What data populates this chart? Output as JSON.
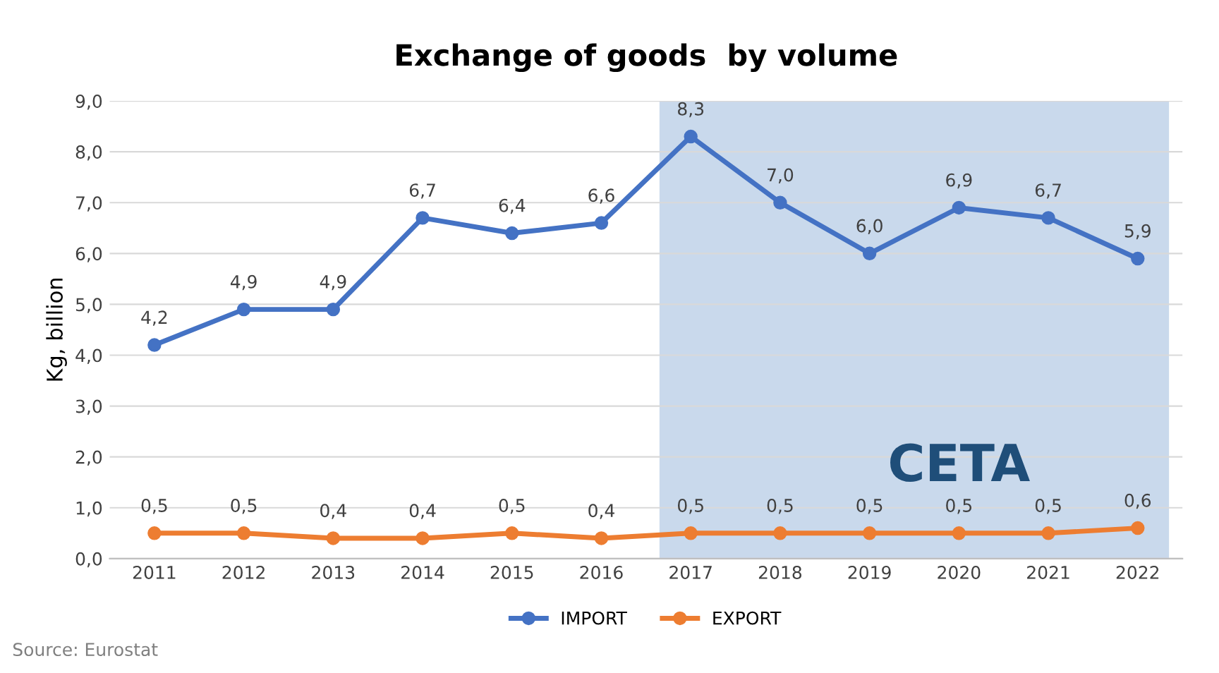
{
  "chart_data": {
    "type": "line",
    "title": "Exchange of goods  by volume",
    "ylabel": "Kg, billion",
    "categories": [
      "2011",
      "2012",
      "2013",
      "2014",
      "2015",
      "2016",
      "2017",
      "2018",
      "2019",
      "2020",
      "2021",
      "2022"
    ],
    "series": [
      {
        "name": "IMPORT",
        "color": "#4472c4",
        "values": [
          4.2,
          4.9,
          4.9,
          6.7,
          6.4,
          6.6,
          8.3,
          7.0,
          6.0,
          6.9,
          6.7,
          5.9
        ],
        "value_labels": [
          "4,2",
          "4,9",
          "4,9",
          "6,7",
          "6,4",
          "6,6",
          "8,3",
          "7,0",
          "6,0",
          "6,9",
          "6,7",
          "5,9"
        ]
      },
      {
        "name": "EXPORT",
        "color": "#ed7d31",
        "values": [
          0.5,
          0.5,
          0.4,
          0.4,
          0.5,
          0.4,
          0.5,
          0.5,
          0.5,
          0.5,
          0.5,
          0.6
        ],
        "value_labels": [
          "0,5",
          "0,5",
          "0,4",
          "0,4",
          "0,5",
          "0,4",
          "0,5",
          "0,5",
          "0,5",
          "0,5",
          "0,5",
          "0,6"
        ]
      }
    ],
    "ylim": [
      0,
      9
    ],
    "yticks": [
      {
        "value": 0,
        "label": "0,0"
      },
      {
        "value": 1,
        "label": "1,0"
      },
      {
        "value": 2,
        "label": "2,0"
      },
      {
        "value": 3,
        "label": "3,0"
      },
      {
        "value": 4,
        "label": "4,0"
      },
      {
        "value": 5,
        "label": "5,0"
      },
      {
        "value": 6,
        "label": "6,0"
      },
      {
        "value": 7,
        "label": "7,0"
      },
      {
        "value": 8,
        "label": "8,0"
      },
      {
        "value": 9,
        "label": "9,0"
      }
    ],
    "bands": [
      {
        "axis": "x",
        "from": "2017",
        "to": "2022",
        "label": "CETA",
        "color": "#c9d9ec"
      }
    ],
    "grid": "y",
    "legend": "bottom",
    "marker": "circle",
    "line_style": "solid",
    "annotations": [
      "Source: Eurostat"
    ]
  }
}
